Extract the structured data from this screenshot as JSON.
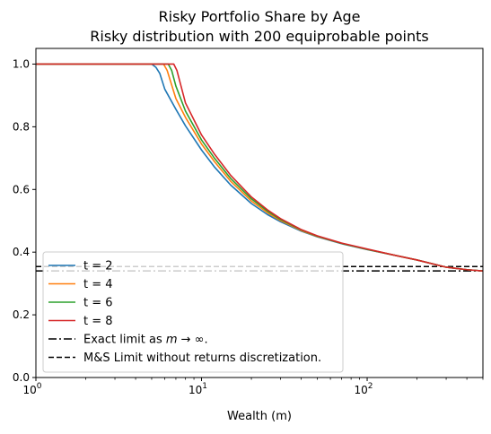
{
  "chart_data": {
    "type": "line",
    "title": "Risky Portfolio Share by Age",
    "subtitle": "Risky distribution with 200 equiprobable points",
    "xlabel": "Wealth (m)",
    "ylabel": "",
    "xscale": "log",
    "xlim": [
      1,
      500
    ],
    "ylim": [
      0,
      1.05
    ],
    "x_ticks": [
      {
        "value": 1,
        "base": "10",
        "exp": "0"
      },
      {
        "value": 10,
        "base": "10",
        "exp": "1"
      },
      {
        "value": 100,
        "base": "10",
        "exp": "2"
      }
    ],
    "y_ticks": [
      "0.0",
      "0.2",
      "0.4",
      "0.6",
      "0.8",
      "1.0"
    ],
    "grid": false,
    "legend_position": "lower-left",
    "series": [
      {
        "name": "t = 2",
        "color": "#1f77b4",
        "x": [
          1,
          3,
          5.0,
          5.3,
          5.6,
          6,
          7,
          8,
          10,
          12,
          15,
          20,
          25,
          30,
          40,
          50,
          70,
          100,
          150,
          200,
          300,
          400,
          500
        ],
        "y": [
          1.0,
          1.0,
          1.0,
          0.99,
          0.97,
          0.92,
          0.856,
          0.803,
          0.726,
          0.671,
          0.614,
          0.555,
          0.52,
          0.497,
          0.467,
          0.449,
          0.427,
          0.408,
          0.389,
          0.375,
          0.352,
          0.344,
          0.34
        ]
      },
      {
        "name": "t = 4",
        "color": "#ff7f0e",
        "x": [
          1,
          3,
          5.5,
          5.9,
          6.2,
          7,
          8,
          10,
          12,
          15,
          20,
          25,
          30,
          40,
          50,
          70,
          100,
          150,
          200,
          300,
          400,
          500
        ],
        "y": [
          1.0,
          1.0,
          1.0,
          1.0,
          0.98,
          0.89,
          0.83,
          0.745,
          0.688,
          0.626,
          0.563,
          0.526,
          0.501,
          0.469,
          0.45,
          0.428,
          0.409,
          0.389,
          0.375,
          0.352,
          0.344,
          0.34
        ]
      },
      {
        "name": "t = 6",
        "color": "#2ca02c",
        "x": [
          1,
          3,
          6.0,
          6.3,
          6.6,
          7,
          8,
          10,
          12,
          15,
          20,
          25,
          30,
          40,
          50,
          70,
          100,
          150,
          200,
          300,
          400,
          500
        ],
        "y": [
          1.0,
          1.0,
          1.0,
          1.0,
          0.98,
          0.93,
          0.85,
          0.758,
          0.699,
          0.635,
          0.57,
          0.531,
          0.504,
          0.471,
          0.451,
          0.428,
          0.409,
          0.389,
          0.375,
          0.352,
          0.344,
          0.34
        ]
      },
      {
        "name": "t = 8",
        "color": "#d62728",
        "x": [
          1,
          3,
          6.5,
          6.8,
          7.1,
          8,
          10,
          12,
          15,
          20,
          25,
          30,
          40,
          50,
          70,
          100,
          150,
          200,
          300,
          400,
          500
        ],
        "y": [
          1.0,
          1.0,
          1.0,
          1.0,
          0.98,
          0.876,
          0.774,
          0.712,
          0.645,
          0.576,
          0.535,
          0.507,
          0.472,
          0.452,
          0.429,
          0.41,
          0.389,
          0.375,
          0.352,
          0.344,
          0.34
        ]
      }
    ],
    "reference_lines": [
      {
        "name": "Exact limit as m→∞.",
        "legend_prefix": "Exact limit as ",
        "legend_math": "m → ∞",
        "legend_suffix": ".",
        "y": 0.34,
        "style": "dashdot",
        "color": "#000000"
      },
      {
        "name": "M&S Limit without returns discretization.",
        "y": 0.354,
        "style": "dashed",
        "color": "#000000"
      }
    ]
  }
}
